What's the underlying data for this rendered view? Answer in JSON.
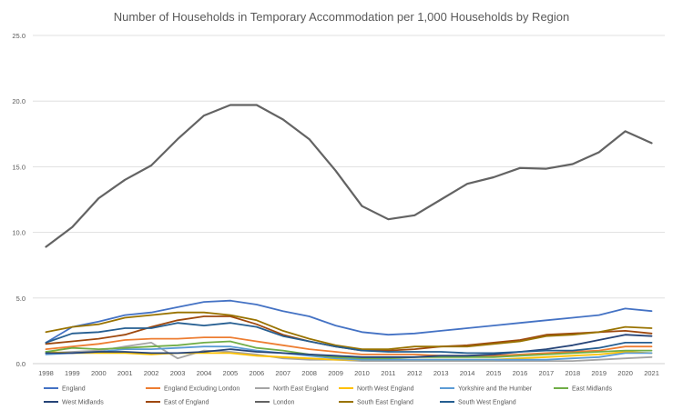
{
  "chart_data": {
    "type": "line",
    "title": "Number of Households in Temporary Accommodation per 1,000 Households by Region",
    "xlabel": "",
    "ylabel": "",
    "ylim": [
      0,
      25
    ],
    "yticks": [
      "0.0",
      "5.0",
      "10.0",
      "15.0",
      "20.0",
      "25.0"
    ],
    "x": [
      "1998",
      "1999",
      "2000",
      "2001",
      "2002",
      "2003",
      "2004",
      "2005",
      "2006",
      "2007",
      "2008",
      "2009",
      "2010",
      "2011",
      "2012",
      "2013",
      "2014",
      "2015",
      "2016",
      "2017",
      "2018",
      "2019",
      "2020",
      "2021"
    ],
    "grid": true,
    "legend": "bottom",
    "series": [
      {
        "name": "England",
        "color": "#4472C4",
        "values": [
          1.6,
          2.8,
          3.2,
          3.7,
          3.9,
          4.3,
          4.7,
          4.8,
          4.5,
          4.0,
          3.6,
          2.9,
          2.4,
          2.2,
          2.3,
          2.5,
          2.7,
          2.9,
          3.1,
          3.3,
          3.5,
          3.7,
          4.2,
          4.0
        ]
      },
      {
        "name": "England Excluding London",
        "color": "#ED7D31",
        "values": [
          1.1,
          1.3,
          1.5,
          1.8,
          1.9,
          1.9,
          2.0,
          2.0,
          1.7,
          1.4,
          1.1,
          0.9,
          0.7,
          0.7,
          0.7,
          0.6,
          0.6,
          0.6,
          0.7,
          0.8,
          0.9,
          1.0,
          1.3,
          1.3
        ]
      },
      {
        "name": "North East England",
        "color": "#A5A5A5",
        "values": [
          0.8,
          0.9,
          1.0,
          1.3,
          1.6,
          0.4,
          1.0,
          0.9,
          0.7,
          0.4,
          0.3,
          0.3,
          0.2,
          0.2,
          0.2,
          0.2,
          0.2,
          0.2,
          0.2,
          0.2,
          0.2,
          0.3,
          0.4,
          0.5
        ]
      },
      {
        "name": "North West England",
        "color": "#FFC000",
        "values": [
          0.9,
          0.8,
          0.8,
          0.8,
          0.7,
          0.8,
          0.8,
          0.8,
          0.6,
          0.5,
          0.4,
          0.3,
          0.3,
          0.3,
          0.3,
          0.3,
          0.3,
          0.3,
          0.4,
          0.5,
          0.6,
          0.7,
          0.9,
          0.8
        ]
      },
      {
        "name": "Yorkshire and the Humber",
        "color": "#5B9BD5",
        "values": [
          0.7,
          0.8,
          0.9,
          1.1,
          1.1,
          1.2,
          1.3,
          1.3,
          1.0,
          0.8,
          0.6,
          0.4,
          0.3,
          0.3,
          0.3,
          0.3,
          0.3,
          0.3,
          0.3,
          0.3,
          0.4,
          0.5,
          0.8,
          0.8
        ]
      },
      {
        "name": "East Midlands",
        "color": "#70AD47",
        "values": [
          0.9,
          1.2,
          1.1,
          1.2,
          1.3,
          1.4,
          1.6,
          1.7,
          1.2,
          1.0,
          0.7,
          0.5,
          0.4,
          0.4,
          0.5,
          0.5,
          0.5,
          0.5,
          0.6,
          0.7,
          0.8,
          0.9,
          1.0,
          1.0
        ]
      },
      {
        "name": "West Midlands",
        "color": "#264478",
        "values": [
          0.8,
          0.8,
          0.9,
          0.9,
          0.8,
          0.8,
          0.9,
          1.1,
          0.9,
          0.8,
          0.7,
          0.6,
          0.5,
          0.5,
          0.5,
          0.6,
          0.6,
          0.7,
          0.9,
          1.1,
          1.4,
          1.8,
          2.2,
          2.1
        ]
      },
      {
        "name": "East of England",
        "color": "#9E480E",
        "values": [
          1.5,
          1.7,
          1.9,
          2.2,
          2.8,
          3.3,
          3.6,
          3.6,
          3.0,
          2.2,
          1.7,
          1.3,
          1.0,
          1.0,
          1.1,
          1.3,
          1.4,
          1.6,
          1.8,
          2.2,
          2.3,
          2.4,
          2.5,
          2.3
        ]
      },
      {
        "name": "London",
        "color": "#636363",
        "values": [
          8.9,
          10.4,
          12.6,
          14.0,
          15.1,
          17.1,
          18.9,
          19.7,
          19.7,
          18.6,
          17.1,
          14.7,
          12.0,
          11.0,
          11.3,
          12.5,
          13.7,
          14.2,
          14.9,
          14.85,
          15.2,
          16.1,
          17.7,
          16.8
        ]
      },
      {
        "name": "South East England",
        "color": "#997300",
        "values": [
          2.4,
          2.8,
          3.0,
          3.5,
          3.7,
          3.9,
          3.9,
          3.7,
          3.3,
          2.5,
          1.9,
          1.4,
          1.1,
          1.1,
          1.3,
          1.3,
          1.3,
          1.5,
          1.7,
          2.1,
          2.2,
          2.4,
          2.8,
          2.7
        ]
      },
      {
        "name": "South West England",
        "color": "#255E91",
        "values": [
          1.6,
          2.3,
          2.4,
          2.7,
          2.7,
          3.1,
          2.9,
          3.1,
          2.8,
          2.1,
          1.7,
          1.3,
          1.0,
          0.9,
          0.9,
          0.9,
          0.8,
          0.8,
          0.9,
          1.0,
          1.0,
          1.2,
          1.6,
          1.6
        ]
      }
    ]
  }
}
